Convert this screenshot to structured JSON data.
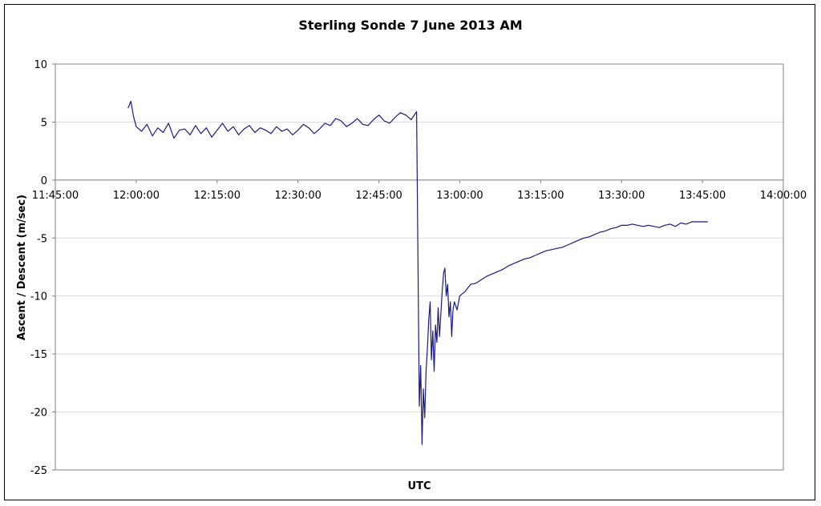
{
  "chart_data": {
    "type": "line",
    "title": "Sterling Sonde 7 June 2013 AM",
    "xlabel": "UTC",
    "ylabel": "Ascent / Descent (m/sec)",
    "x_is_time": true,
    "xlim": [
      "11:45:00",
      "14:00:00"
    ],
    "ylim": [
      -25,
      10
    ],
    "x_ticks": [
      "11:45:00",
      "12:00:00",
      "12:15:00",
      "12:30:00",
      "12:45:00",
      "13:00:00",
      "13:15:00",
      "13:30:00",
      "13:45:00",
      "14:00:00"
    ],
    "y_ticks": [
      10,
      5,
      0,
      -5,
      -10,
      -15,
      -20,
      -25
    ],
    "grid": true,
    "legend": "none",
    "series": [
      {
        "color": "#1a1a80",
        "x": [
          "11:58:30",
          "11:59:00",
          "11:59:30",
          "12:00:00",
          "12:01:00",
          "12:02:00",
          "12:03:00",
          "12:04:00",
          "12:05:00",
          "12:06:00",
          "12:07:00",
          "12:08:00",
          "12:09:00",
          "12:10:00",
          "12:11:00",
          "12:12:00",
          "12:13:00",
          "12:14:00",
          "12:15:00",
          "12:16:00",
          "12:17:00",
          "12:18:00",
          "12:19:00",
          "12:20:00",
          "12:21:00",
          "12:22:00",
          "12:23:00",
          "12:24:00",
          "12:25:00",
          "12:26:00",
          "12:27:00",
          "12:28:00",
          "12:29:00",
          "12:30:00",
          "12:31:00",
          "12:32:00",
          "12:33:00",
          "12:34:00",
          "12:35:00",
          "12:36:00",
          "12:37:00",
          "12:38:00",
          "12:39:00",
          "12:40:00",
          "12:41:00",
          "12:42:00",
          "12:43:00",
          "12:44:00",
          "12:45:00",
          "12:46:00",
          "12:47:00",
          "12:48:00",
          "12:49:00",
          "12:50:00",
          "12:51:00",
          "12:52:00",
          "12:52:30",
          "12:52:45",
          "12:53:00",
          "12:53:15",
          "12:53:30",
          "12:53:45",
          "12:54:00",
          "12:54:15",
          "12:54:30",
          "12:54:45",
          "12:55:00",
          "12:55:15",
          "12:55:30",
          "12:55:45",
          "12:56:00",
          "12:56:15",
          "12:56:30",
          "12:56:45",
          "12:57:00",
          "12:57:15",
          "12:57:30",
          "12:57:45",
          "12:58:00",
          "12:58:15",
          "12:58:30",
          "12:58:45",
          "12:59:00",
          "12:59:30",
          "13:00:00",
          "13:01:00",
          "13:02:00",
          "13:03:00",
          "13:04:00",
          "13:05:00",
          "13:06:00",
          "13:07:00",
          "13:08:00",
          "13:09:00",
          "13:10:00",
          "13:11:00",
          "13:12:00",
          "13:13:00",
          "13:14:00",
          "13:15:00",
          "13:16:00",
          "13:17:00",
          "13:18:00",
          "13:19:00",
          "13:20:00",
          "13:21:00",
          "13:22:00",
          "13:23:00",
          "13:24:00",
          "13:25:00",
          "13:26:00",
          "13:27:00",
          "13:28:00",
          "13:29:00",
          "13:30:00",
          "13:31:00",
          "13:32:00",
          "13:33:00",
          "13:34:00",
          "13:35:00",
          "13:36:00",
          "13:37:00",
          "13:38:00",
          "13:39:00",
          "13:40:00",
          "13:41:00",
          "13:42:00",
          "13:43:00",
          "13:44:00",
          "13:45:00",
          "13:46:00"
        ],
        "y": [
          6.2,
          6.8,
          5.5,
          4.6,
          4.2,
          4.8,
          3.8,
          4.5,
          4.1,
          4.9,
          3.6,
          4.3,
          4.4,
          3.9,
          4.7,
          4.0,
          4.5,
          3.7,
          4.3,
          4.9,
          4.2,
          4.6,
          3.9,
          4.4,
          4.7,
          4.1,
          4.5,
          4.3,
          4.0,
          4.6,
          4.2,
          4.4,
          3.9,
          4.3,
          4.8,
          4.5,
          4.0,
          4.4,
          4.9,
          4.7,
          5.3,
          5.1,
          4.6,
          4.9,
          5.3,
          4.8,
          4.7,
          5.2,
          5.6,
          5.1,
          4.9,
          5.4,
          5.8,
          5.6,
          5.2,
          5.9,
          -19.5,
          -16.0,
          -22.8,
          -18.0,
          -20.5,
          -16.5,
          -14.5,
          -12.0,
          -10.5,
          -15.5,
          -13.0,
          -16.5,
          -12.5,
          -14.0,
          -11.0,
          -13.5,
          -11.5,
          -9.5,
          -8.0,
          -7.6,
          -10.0,
          -9.0,
          -11.8,
          -10.5,
          -13.5,
          -11.2,
          -10.5,
          -11.2,
          -10.0,
          -9.6,
          -9.0,
          -8.9,
          -8.6,
          -8.3,
          -8.1,
          -7.9,
          -7.7,
          -7.4,
          -7.2,
          -7.0,
          -6.8,
          -6.7,
          -6.5,
          -6.3,
          -6.1,
          -6.0,
          -5.9,
          -5.8,
          -5.6,
          -5.4,
          -5.2,
          -5.0,
          -4.9,
          -4.7,
          -4.5,
          -4.4,
          -4.2,
          -4.1,
          -3.9,
          -3.9,
          -3.8,
          -3.9,
          -4.0,
          -3.9,
          -4.0,
          -4.1,
          -3.9,
          -3.8,
          -4.0,
          -3.7,
          -3.8,
          -3.6,
          -3.6,
          -3.6,
          -3.6
        ]
      }
    ]
  }
}
